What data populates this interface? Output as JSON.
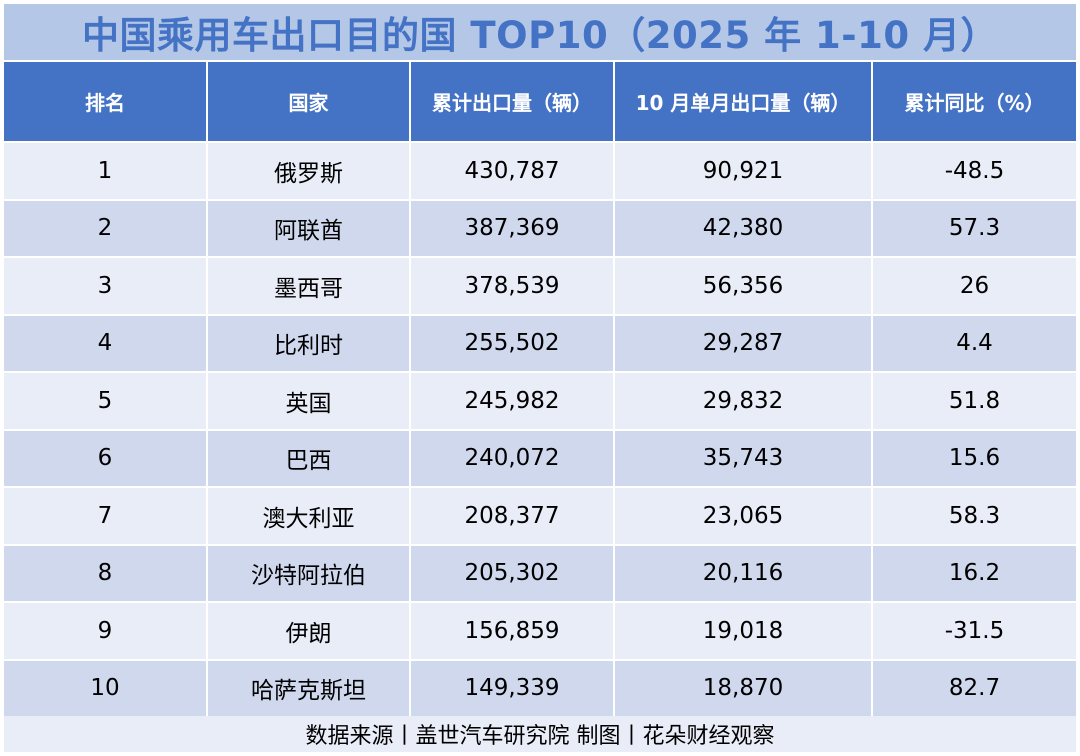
{
  "title": "中国乘用车出口目的国 TOP10（2025 年 1-10 月）",
  "footer": "数据来源丨盖世汽车研究院  制图丨花朵财经观察",
  "colors": {
    "title_bg": "#b4c7e7",
    "title_text": "#4472c4",
    "header_bg": "#4472c4",
    "row_light": "#e9edf7",
    "row_dark": "#d0d8ee"
  },
  "chart_data": {
    "type": "table",
    "title": "中国乘用车出口目的国 TOP10（2025 年 1-10 月）",
    "columns": [
      "排名",
      "国家",
      "累计出口量（辆）",
      "10 月单月出口量（辆）",
      "累计同比（%）"
    ],
    "rows": [
      [
        "1",
        "俄罗斯",
        "430,787",
        "90,921",
        "-48.5"
      ],
      [
        "2",
        "阿联酋",
        "387,369",
        "42,380",
        "57.3"
      ],
      [
        "3",
        "墨西哥",
        "378,539",
        "56,356",
        "26"
      ],
      [
        "4",
        "比利时",
        "255,502",
        "29,287",
        "4.4"
      ],
      [
        "5",
        "英国",
        "245,982",
        "29,832",
        "51.8"
      ],
      [
        "6",
        "巴西",
        "240,072",
        "35,743",
        "15.6"
      ],
      [
        "7",
        "澳大利亚",
        "208,377",
        "23,065",
        "58.3"
      ],
      [
        "8",
        "沙特阿拉伯",
        "205,302",
        "20,116",
        "16.2"
      ],
      [
        "9",
        "伊朗",
        "156,859",
        "19,018",
        "-31.5"
      ],
      [
        "10",
        "哈萨克斯坦",
        "149,339",
        "18,870",
        "82.7"
      ]
    ]
  }
}
